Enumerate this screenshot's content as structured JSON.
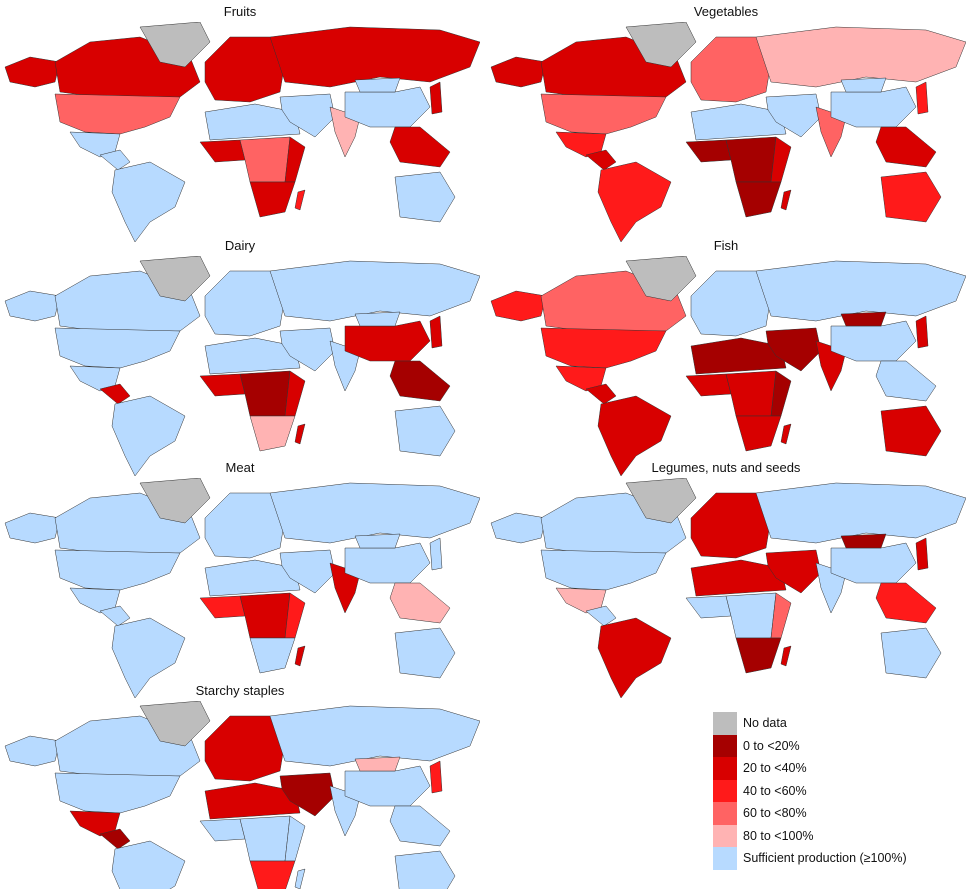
{
  "colors": {
    "nd": "#bdbdbd",
    "0-20": "#a50000",
    "20-40": "#d80000",
    "40-60": "#ff1a1a",
    "60-80": "#ff6363",
    "80-100": "#ffb3b3",
    "sufficient": "#b7daff"
  },
  "legend": [
    {
      "key": "nd",
      "label": "No data"
    },
    {
      "key": "0-20",
      "label": "0 to <20%"
    },
    {
      "key": "20-40",
      "label": "20 to <40%"
    },
    {
      "key": "40-60",
      "label": "40 to <60%"
    },
    {
      "key": "60-80",
      "label": "60 to <80%"
    },
    {
      "key": "80-100",
      "label": "80 to <100%"
    },
    {
      "key": "sufficient",
      "label": "Sufficient production (≥100%)"
    }
  ],
  "panels": [
    {
      "title": "Fruits",
      "regions": {
        "alaska": "20-40",
        "canada": "20-40",
        "greenland": "nd",
        "usa": "60-80",
        "mexico": "sufficient",
        "central_america": "sufficient",
        "south_america": "sufficient",
        "europe": "20-40",
        "russia": "20-40",
        "north_africa": "sufficient",
        "west_africa": "20-40",
        "central_africa": "60-80",
        "east_africa": "20-40",
        "southern_africa": "20-40",
        "madagascar": "40-60",
        "middle_east": "sufficient",
        "india": "80-100",
        "china": "sufficient",
        "mongolia": "sufficient",
        "sea": "20-40",
        "japan": "20-40",
        "australia": "sufficient"
      }
    },
    {
      "title": "Vegetables",
      "regions": {
        "alaska": "20-40",
        "canada": "20-40",
        "greenland": "nd",
        "usa": "60-80",
        "mexico": "40-60",
        "central_america": "20-40",
        "south_america": "40-60",
        "europe": "60-80",
        "russia": "80-100",
        "north_africa": "sufficient",
        "west_africa": "0-20",
        "central_africa": "0-20",
        "east_africa": "20-40",
        "southern_africa": "0-20",
        "madagascar": "20-40",
        "middle_east": "sufficient",
        "india": "60-80",
        "china": "sufficient",
        "mongolia": "sufficient",
        "sea": "20-40",
        "japan": "40-60",
        "australia": "40-60"
      }
    },
    {
      "title": "Dairy",
      "regions": {
        "alaska": "sufficient",
        "canada": "sufficient",
        "greenland": "nd",
        "usa": "sufficient",
        "mexico": "sufficient",
        "central_america": "20-40",
        "south_america": "sufficient",
        "europe": "sufficient",
        "russia": "sufficient",
        "north_africa": "sufficient",
        "west_africa": "20-40",
        "central_africa": "0-20",
        "east_africa": "20-40",
        "southern_africa": "80-100",
        "madagascar": "20-40",
        "middle_east": "sufficient",
        "india": "sufficient",
        "china": "20-40",
        "mongolia": "sufficient",
        "sea": "0-20",
        "japan": "20-40",
        "australia": "sufficient"
      }
    },
    {
      "title": "Fish",
      "regions": {
        "alaska": "40-60",
        "canada": "60-80",
        "greenland": "nd",
        "usa": "40-60",
        "mexico": "40-60",
        "central_america": "20-40",
        "south_america": "20-40",
        "europe": "sufficient",
        "russia": "sufficient",
        "north_africa": "0-20",
        "west_africa": "20-40",
        "central_africa": "20-40",
        "east_africa": "0-20",
        "southern_africa": "20-40",
        "madagascar": "20-40",
        "middle_east": "0-20",
        "india": "20-40",
        "china": "sufficient",
        "mongolia": "0-20",
        "sea": "sufficient",
        "japan": "20-40",
        "australia": "20-40"
      }
    },
    {
      "title": "Meat",
      "regions": {
        "alaska": "sufficient",
        "canada": "sufficient",
        "greenland": "nd",
        "usa": "sufficient",
        "mexico": "sufficient",
        "central_america": "sufficient",
        "south_america": "sufficient",
        "europe": "sufficient",
        "russia": "sufficient",
        "north_africa": "sufficient",
        "west_africa": "40-60",
        "central_africa": "20-40",
        "east_africa": "40-60",
        "southern_africa": "sufficient",
        "madagascar": "20-40",
        "middle_east": "sufficient",
        "india": "20-40",
        "china": "sufficient",
        "mongolia": "sufficient",
        "sea": "80-100",
        "japan": "sufficient",
        "australia": "sufficient"
      }
    },
    {
      "title": "Legumes, nuts and seeds",
      "regions": {
        "alaska": "sufficient",
        "canada": "sufficient",
        "greenland": "nd",
        "usa": "sufficient",
        "mexico": "80-100",
        "central_america": "sufficient",
        "south_america": "20-40",
        "europe": "20-40",
        "russia": "sufficient",
        "north_africa": "20-40",
        "west_africa": "sufficient",
        "central_africa": "sufficient",
        "east_africa": "60-80",
        "southern_africa": "0-20",
        "madagascar": "20-40",
        "middle_east": "20-40",
        "india": "sufficient",
        "china": "sufficient",
        "mongolia": "0-20",
        "sea": "40-60",
        "japan": "20-40",
        "australia": "sufficient"
      }
    },
    {
      "title": "Starchy staples",
      "regions": {
        "alaska": "sufficient",
        "canada": "sufficient",
        "greenland": "nd",
        "usa": "sufficient",
        "mexico": "20-40",
        "central_america": "0-20",
        "south_america": "sufficient",
        "europe": "20-40",
        "russia": "sufficient",
        "north_africa": "20-40",
        "west_africa": "sufficient",
        "central_africa": "sufficient",
        "east_africa": "sufficient",
        "southern_africa": "40-60",
        "madagascar": "sufficient",
        "middle_east": "0-20",
        "india": "sufficient",
        "china": "sufficient",
        "mongolia": "80-100",
        "sea": "sufficient",
        "japan": "40-60",
        "australia": "sufficient"
      }
    }
  ]
}
